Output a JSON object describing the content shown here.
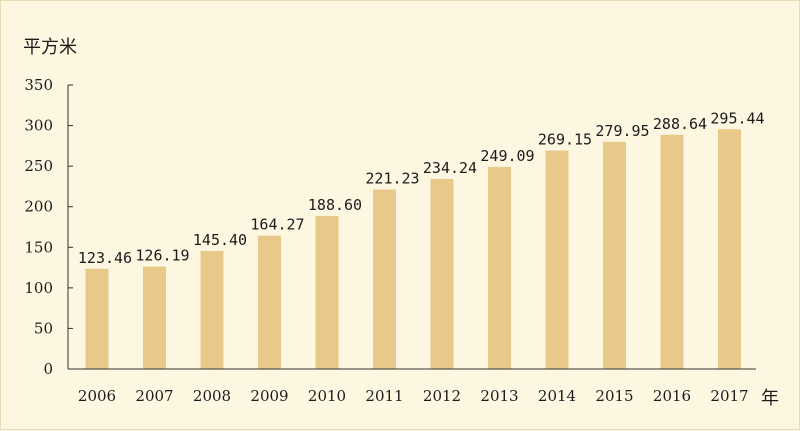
{
  "chart_data": {
    "type": "bar",
    "ylabel": "平方米",
    "xlabel": "年",
    "categories": [
      "2006",
      "2007",
      "2008",
      "2009",
      "2010",
      "2011",
      "2012",
      "2013",
      "2014",
      "2015",
      "2016",
      "2017"
    ],
    "values": [
      123.46,
      126.19,
      145.4,
      164.27,
      188.6,
      221.23,
      234.24,
      249.09,
      269.15,
      279.95,
      288.64,
      295.44
    ],
    "data_labels": [
      "123.46",
      "126.19",
      "145.40",
      "164.27",
      "188.60",
      "221.23",
      "234.24",
      "249.09",
      "269.15",
      "279.95",
      "288.64",
      "295.44"
    ],
    "ylim": [
      0,
      350
    ],
    "yticks": [
      0,
      50,
      100,
      150,
      200,
      250,
      300,
      350
    ],
    "grid": false,
    "bar_color": "#e9c98a",
    "background_color": "#fdf6e1"
  }
}
